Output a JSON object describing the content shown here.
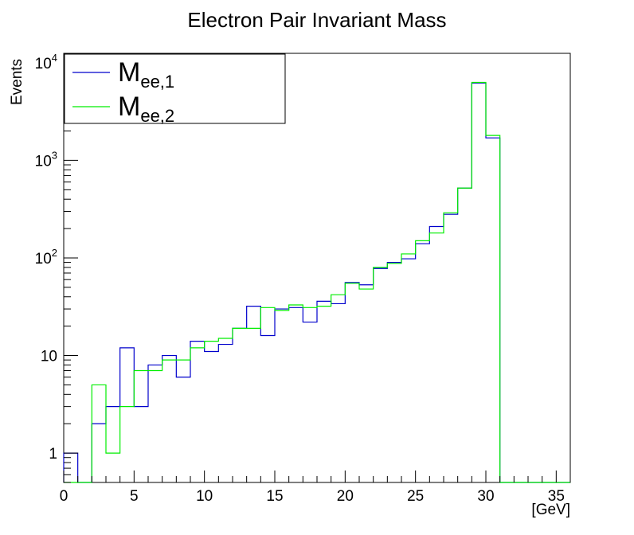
{
  "chart_data": {
    "type": "histogram-step",
    "title": "Electron Pair Invariant Mass",
    "xlabel": "[GeV]",
    "ylabel": "Events",
    "xlim": [
      0,
      36
    ],
    "ylim": [
      0.5,
      12500
    ],
    "yscale": "log",
    "grid": false,
    "legend_position": "top-left",
    "x_ticks": [
      "0",
      "5",
      "10",
      "15",
      "20",
      "25",
      "30",
      "35"
    ],
    "y_ticks": [
      {
        "value": 1,
        "label": "1"
      },
      {
        "value": 10,
        "label": "10"
      },
      {
        "value": 100,
        "base": "10",
        "exp": "2"
      },
      {
        "value": 1000,
        "base": "10",
        "exp": "3"
      },
      {
        "value": 10000,
        "base": "10",
        "exp": "4"
      }
    ],
    "bin_edges": [
      0,
      1,
      2,
      3,
      4,
      5,
      6,
      7,
      8,
      9,
      10,
      11,
      12,
      13,
      14,
      15,
      16,
      17,
      18,
      19,
      20,
      21,
      22,
      23,
      24,
      25,
      26,
      27,
      28,
      29,
      30,
      31,
      32,
      33,
      34,
      35,
      36
    ],
    "series": [
      {
        "name_main": "M",
        "name_sub": "ee,1",
        "color": "#0000cc",
        "values": [
          1,
          0,
          2,
          3,
          12,
          3,
          8,
          10,
          6,
          14,
          11,
          13,
          19,
          32,
          16,
          30,
          31,
          22,
          36,
          34,
          56,
          53,
          78,
          90,
          98,
          140,
          210,
          280,
          520,
          6200,
          1700,
          0,
          0,
          0,
          0,
          0
        ]
      },
      {
        "name_main": "M",
        "name_sub": "ee,2",
        "color": "#00ee00",
        "values": [
          0,
          0,
          5,
          1,
          3,
          7,
          7,
          9,
          9,
          12,
          14,
          15,
          19,
          19,
          31,
          29,
          33,
          31,
          32,
          42,
          55,
          48,
          80,
          88,
          110,
          150,
          180,
          290,
          520,
          6300,
          1800,
          0,
          0,
          0,
          0,
          0
        ]
      }
    ]
  }
}
